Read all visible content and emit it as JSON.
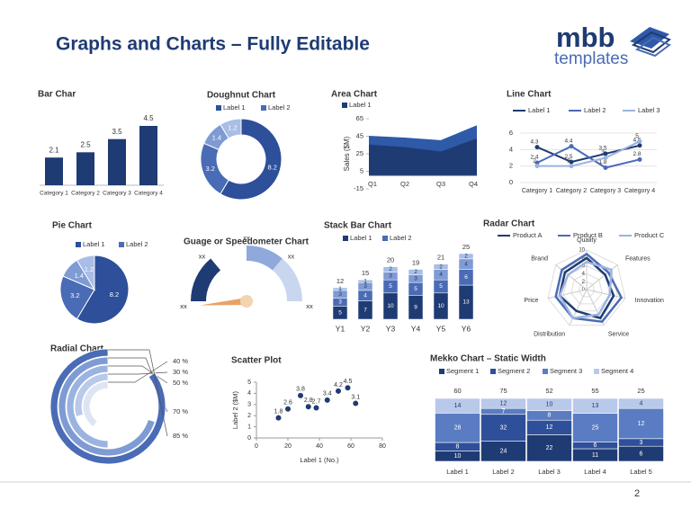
{
  "header": {
    "title": "Graphs and Charts – Fully Editable",
    "logo": "mbb",
    "logo_sub": "templates"
  },
  "chart_data": [
    {
      "type": "bar",
      "title": "Bar Char",
      "categories": [
        "Category 1",
        "Category 2",
        "Category 3",
        "Category 4"
      ],
      "values": [
        2.1,
        2.5,
        3.5,
        4.5
      ],
      "color": "#1f3b73"
    },
    {
      "type": "doughnut",
      "title": "Doughnut Chart",
      "legend": [
        "Label 1",
        "Label 2"
      ],
      "values": [
        8.2,
        3.2,
        1.4,
        1.2
      ],
      "colors": [
        "#2e4f9a",
        "#4a6bb5",
        "#7f9bd4",
        "#a9bde6"
      ]
    },
    {
      "type": "area",
      "title": "Area Chart",
      "y_label": "Sales ($M)",
      "categories": [
        "Q1",
        "Q2",
        "Q3",
        "Q4"
      ],
      "series": [
        {
          "name": "Label 1",
          "color": "#1f3b73",
          "values": [
            35,
            32,
            27,
            42
          ]
        },
        {
          "color": "#2e5aa8",
          "values": [
            45,
            43,
            40,
            57
          ]
        }
      ],
      "ylim": [
        -15,
        65
      ],
      "yticks": [
        -15,
        5,
        25,
        45,
        65
      ]
    },
    {
      "type": "line",
      "title": "Line Chart",
      "categories": [
        "Category 1",
        "Category 2",
        "Category 3",
        "Category 4"
      ],
      "series": [
        {
          "name": "Label 1",
          "color": "#1f3b73",
          "values": [
            4.3,
            2.5,
            3.5,
            4.5
          ]
        },
        {
          "name": "Label 2",
          "color": "#4a6bb5",
          "values": [
            2.4,
            4.4,
            1.8,
            2.8
          ]
        },
        {
          "name": "Label 3",
          "color": "#9bb3e0",
          "values": [
            2,
            2,
            3,
            5
          ]
        }
      ],
      "ylim": [
        0,
        6
      ],
      "yticks": [
        0,
        2,
        4,
        6
      ],
      "grid": true
    },
    {
      "type": "pie",
      "title": "Pie Chart",
      "legend": [
        "Label 1",
        "Label 2"
      ],
      "values": [
        8.2,
        3.2,
        1.4,
        1.2
      ],
      "colors": [
        "#2e4f9a",
        "#4a6bb5",
        "#7f9bd4",
        "#a9bde6"
      ]
    },
    {
      "type": "gauge",
      "title": "Guage or Speedometer Chart",
      "labels": [
        "xx",
        "xx",
        "xx",
        "xx",
        "xx"
      ]
    },
    {
      "type": "stacked_bar",
      "title": "Stack Bar Chart",
      "categories": [
        "Y1",
        "Y2",
        "Y3",
        "Y4",
        "Y5",
        "Y6"
      ],
      "series": [
        {
          "name": "Label 1",
          "color": "#1f3b73",
          "values": [
            5,
            7,
            10,
            9,
            10,
            13
          ]
        },
        {
          "name": "Label 2",
          "color": "#4a6bb5",
          "values": [
            3,
            4,
            5,
            5,
            5,
            6
          ]
        },
        {
          "color": "#7f9bd4",
          "values": [
            3,
            3,
            3,
            3,
            4,
            4
          ]
        },
        {
          "color": "#a9bde6",
          "values": [
            1,
            1,
            2,
            2,
            2,
            2
          ]
        }
      ],
      "totals": [
        12,
        15,
        20,
        19,
        21,
        25
      ]
    },
    {
      "type": "radar",
      "title": "Radar Chart",
      "axes": [
        "Quality",
        "Features",
        "Innovation",
        "Service",
        "Distribution",
        "Price",
        "Brand"
      ],
      "series": [
        {
          "name": "Product A",
          "color": "#1f3b73",
          "values": [
            8,
            6,
            7,
            8,
            6,
            7,
            7
          ]
        },
        {
          "name": "Product B",
          "color": "#4a6bb5",
          "values": [
            9,
            7,
            9,
            9,
            8,
            8,
            8
          ]
        },
        {
          "name": "Product C",
          "color": "#9bb3e0",
          "values": [
            7,
            8,
            6,
            7,
            8,
            7,
            6
          ]
        }
      ],
      "rlim": [
        0,
        10
      ],
      "rticks": [
        0,
        2,
        4,
        6,
        8,
        10
      ]
    },
    {
      "type": "radial",
      "title": "Radial Chart",
      "values": [
        40,
        30,
        50,
        70,
        85
      ],
      "value_labels": [
        "40 %",
        "30 %",
        "50 %",
        "70 %",
        "85 %"
      ],
      "colors": [
        "#dde5f5",
        "#b9c9ea",
        "#9bb3e0",
        "#7f9bd4",
        "#4a6bb5"
      ]
    },
    {
      "type": "scatter",
      "title": "Scatter Plot",
      "x_label": "Label 1 (No.)",
      "y_label": "Label 2 ($M)",
      "x": [
        14,
        20,
        28,
        33,
        38,
        45,
        52,
        58,
        63
      ],
      "values": [
        1.8,
        2.6,
        3.8,
        2.8,
        2.7,
        3.4,
        4.2,
        4.5,
        3.1
      ],
      "color": "#1f3b73",
      "xlim": [
        0,
        80
      ],
      "ylim": [
        0,
        5
      ],
      "xticks": [
        0,
        20,
        40,
        60,
        80
      ],
      "yticks": [
        0,
        1,
        2,
        3,
        4,
        5
      ]
    },
    {
      "type": "mekko",
      "title": "Mekko Chart – Static Width",
      "categories": [
        "Label 1",
        "Label 2",
        "Label 3",
        "Label 4",
        "Label 5"
      ],
      "series": [
        {
          "name": "Segment 1",
          "color": "#1f3b73",
          "values": [
            10,
            24,
            22,
            11,
            6
          ]
        },
        {
          "name": "Segment 2",
          "color": "#2e4f9a",
          "values": [
            8,
            32,
            12,
            6,
            3
          ]
        },
        {
          "name": "Segment 3",
          "color": "#5a7cc2",
          "values": [
            28,
            7,
            8,
            25,
            12
          ]
        },
        {
          "name": "Segment 4",
          "color": "#b9c9ea",
          "values": [
            14,
            12,
            10,
            13,
            4
          ]
        }
      ],
      "totals": [
        60,
        75,
        52,
        55,
        25
      ]
    }
  ],
  "footer": {
    "page": 2
  }
}
